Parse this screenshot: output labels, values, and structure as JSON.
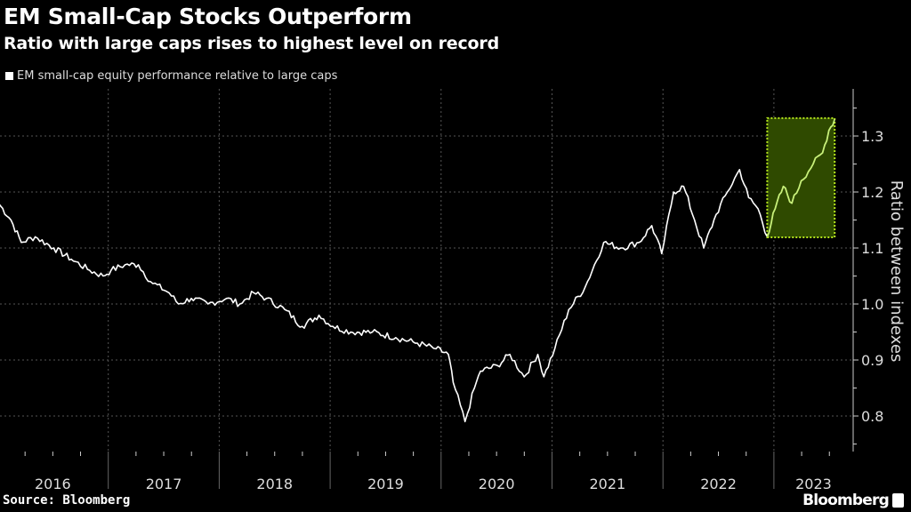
{
  "header": {
    "title": "EM Small-Cap Stocks Outperform",
    "subtitle": "Ratio with large caps rises to highest level on record"
  },
  "footer": {
    "source": "Source: Bloomberg",
    "logo": "Bloomberg"
  },
  "chart_data": {
    "type": "line",
    "legend": {
      "placement": "top-left",
      "entries": [
        "EM small-cap equity performance relative to large caps"
      ]
    },
    "ylabel": "Ratio between indexes",
    "y_axis_side": "right",
    "ylim": [
      0.735,
      1.385
    ],
    "yticks": [
      "0.8",
      "0.9",
      "1.0",
      "1.1",
      "1.2",
      "1.3"
    ],
    "xlim": [
      "2016-01-01",
      "2023-12-31"
    ],
    "xticks": [
      "2016",
      "2017",
      "2018",
      "2019",
      "2020",
      "2021",
      "2022",
      "2023"
    ],
    "grid": true,
    "colors": {
      "background": "#000000",
      "line": "#ffffff",
      "highlight_fill": "#2f4a00",
      "highlight_border": "#b5e61d",
      "highlight_line": "#c8f07a"
    },
    "highlight": {
      "x_start": "2022-12-10",
      "x_end": "2023-07-20",
      "y_start": 1.119,
      "y_end": 1.332
    },
    "series": [
      {
        "name": "EM small-cap equity performance relative to large caps",
        "points": [
          [
            "2016-01-05",
            1.18
          ],
          [
            "2016-02-15",
            1.15
          ],
          [
            "2016-03-20",
            1.11
          ],
          [
            "2016-05-05",
            1.12
          ],
          [
            "2016-07-05",
            1.1
          ],
          [
            "2016-09-01",
            1.08
          ],
          [
            "2016-11-01",
            1.06
          ],
          [
            "2016-12-15",
            1.05
          ],
          [
            "2017-01-10",
            1.06
          ],
          [
            "2017-02-25",
            1.07
          ],
          [
            "2017-04-10",
            1.07
          ],
          [
            "2017-05-20",
            1.04
          ],
          [
            "2017-07-20",
            1.02
          ],
          [
            "2017-08-20",
            1.0
          ],
          [
            "2017-10-01",
            1.01
          ],
          [
            "2017-11-25",
            1.0
          ],
          [
            "2018-01-25",
            1.01
          ],
          [
            "2018-03-10",
            1.0
          ],
          [
            "2018-04-25",
            1.02
          ],
          [
            "2018-06-05",
            1.01
          ],
          [
            "2018-08-05",
            0.99
          ],
          [
            "2018-10-01",
            0.96
          ],
          [
            "2018-11-25",
            0.98
          ],
          [
            "2019-01-10",
            0.96
          ],
          [
            "2019-03-10",
            0.95
          ],
          [
            "2019-05-20",
            0.95
          ],
          [
            "2019-08-05",
            0.94
          ],
          [
            "2019-10-15",
            0.93
          ],
          [
            "2019-12-15",
            0.92
          ],
          [
            "2020-01-25",
            0.91
          ],
          [
            "2020-02-10",
            0.86
          ],
          [
            "2020-03-20",
            0.79
          ],
          [
            "2020-04-20",
            0.85
          ],
          [
            "2020-05-10",
            0.88
          ],
          [
            "2020-07-05",
            0.89
          ],
          [
            "2020-08-15",
            0.91
          ],
          [
            "2020-10-01",
            0.87
          ],
          [
            "2020-11-15",
            0.91
          ],
          [
            "2020-12-05",
            0.87
          ],
          [
            "2021-01-10",
            0.92
          ],
          [
            "2021-02-25",
            0.99
          ],
          [
            "2021-04-20",
            1.03
          ],
          [
            "2021-06-20",
            1.11
          ],
          [
            "2021-08-15",
            1.1
          ],
          [
            "2021-10-15",
            1.11
          ],
          [
            "2021-11-25",
            1.14
          ],
          [
            "2021-12-28",
            1.09
          ],
          [
            "2022-02-05",
            1.2
          ],
          [
            "2022-03-10",
            1.21
          ],
          [
            "2022-04-15",
            1.15
          ],
          [
            "2022-05-15",
            1.1
          ],
          [
            "2022-06-25",
            1.16
          ],
          [
            "2022-08-01",
            1.2
          ],
          [
            "2022-09-10",
            1.24
          ],
          [
            "2022-10-10",
            1.19
          ],
          [
            "2022-11-10",
            1.17
          ],
          [
            "2022-12-10",
            1.12
          ],
          [
            "2023-01-05",
            1.17
          ],
          [
            "2023-02-01",
            1.21
          ],
          [
            "2023-03-01",
            1.18
          ],
          [
            "2023-04-01",
            1.22
          ],
          [
            "2023-05-10",
            1.25
          ],
          [
            "2023-06-10",
            1.27
          ],
          [
            "2023-07-01",
            1.31
          ],
          [
            "2023-07-20",
            1.33
          ]
        ]
      }
    ]
  }
}
